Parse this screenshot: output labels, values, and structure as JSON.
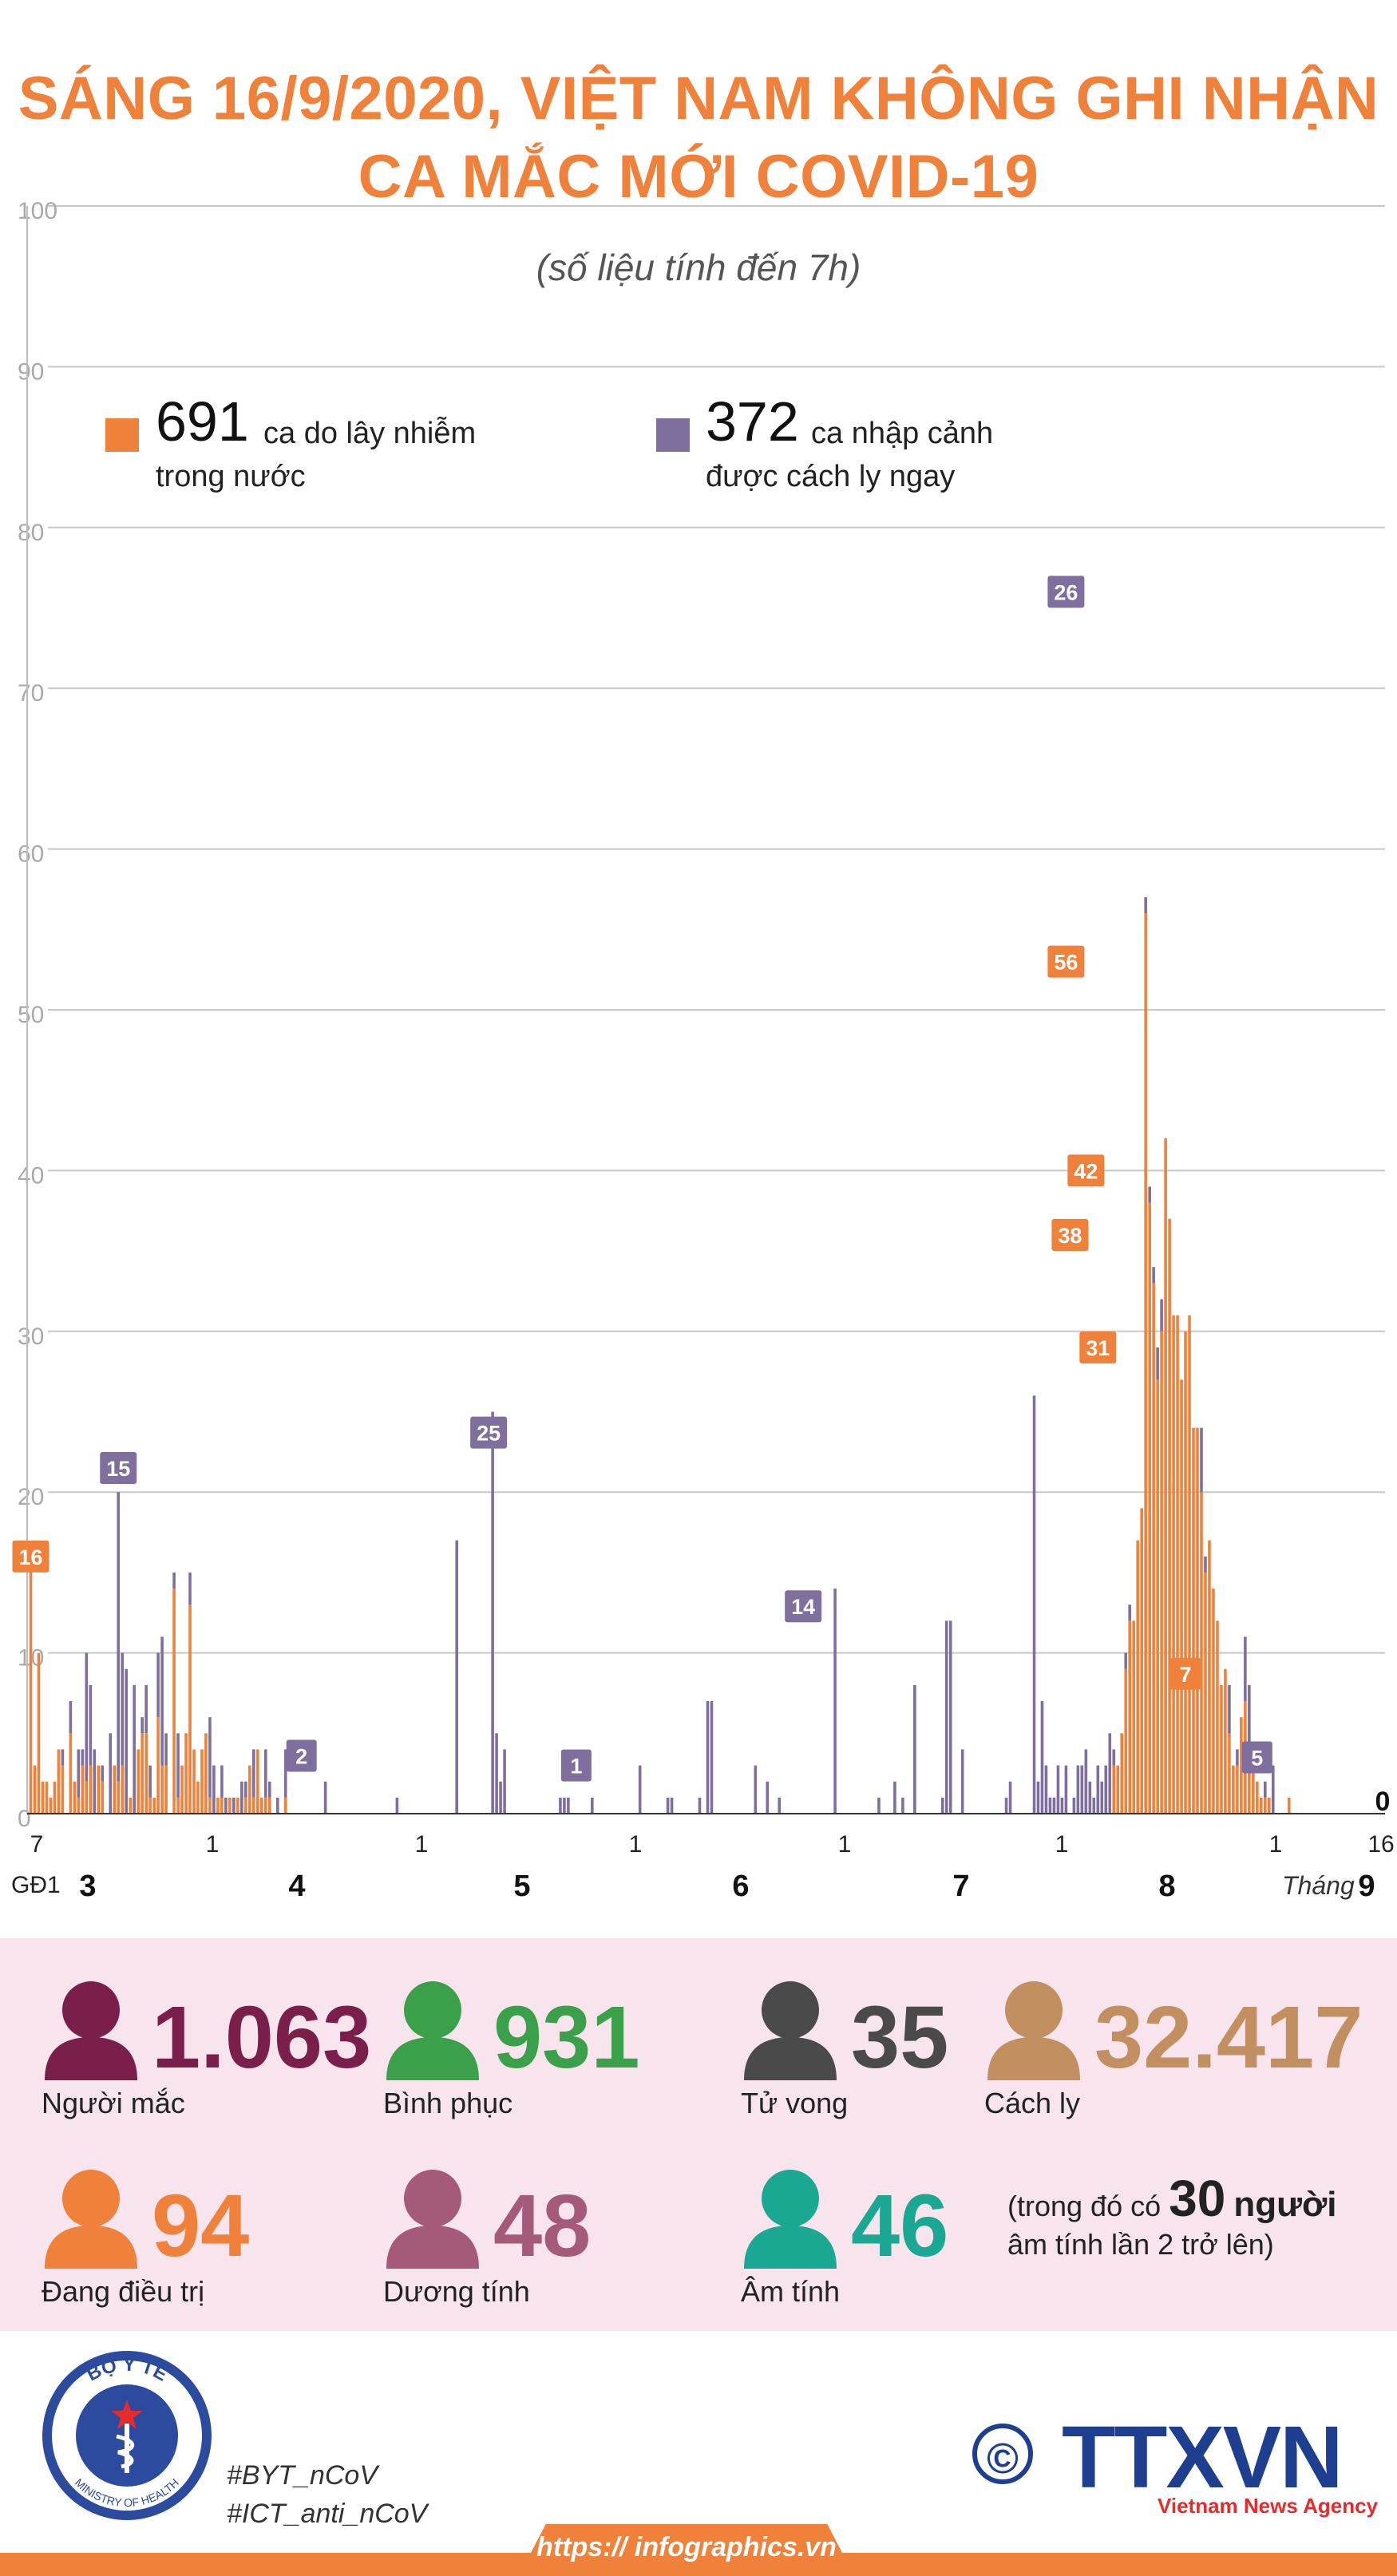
{
  "title": {
    "line1": "SÁNG 16/9/2020, VIỆT NAM KHÔNG GHI NHẬN",
    "line2": "CA MẮC MỚI COVID-19",
    "subtitle": "(số liệu tính đến 7h)"
  },
  "colors": {
    "domestic": "#f0813a",
    "imported": "#7f6f9e",
    "accent": "#f0813a"
  },
  "legend": {
    "domestic": {
      "count": "691",
      "line1": "ca do lây nhiễm",
      "line2": "trong nước"
    },
    "imported": {
      "count": "372",
      "line1": "ca nhập cảnh",
      "line2": "được cách ly ngay"
    }
  },
  "chart_data": {
    "type": "bar",
    "stacked": true,
    "ylim": [
      0,
      100
    ],
    "yticks": [
      0,
      10,
      20,
      30,
      40,
      50,
      60,
      70,
      80,
      90,
      100
    ],
    "grid": true,
    "x_unit": "day (23/1/2020 – 16/9/2020)",
    "series": [
      {
        "name": "ca do lây nhiễm trong nước",
        "color": "#f0813a",
        "values": [
          16,
          3,
          10,
          2,
          2,
          1,
          2,
          4,
          3,
          0,
          5,
          2,
          1,
          3,
          2,
          3,
          0,
          3,
          2,
          0,
          0,
          3,
          2,
          3,
          0,
          1,
          0,
          4,
          5,
          5,
          1,
          1,
          6,
          3,
          3,
          0,
          14,
          1,
          3,
          5,
          13,
          4,
          2,
          4,
          5,
          1,
          0,
          1,
          1,
          0,
          1,
          0,
          1,
          0,
          1,
          3,
          1,
          4,
          1,
          1,
          1,
          0,
          0,
          0,
          1,
          0,
          0,
          0,
          0,
          0,
          0,
          0,
          0,
          0,
          0,
          0,
          0,
          0,
          0,
          0,
          0,
          0,
          0,
          0,
          0,
          0,
          0,
          0,
          0,
          0,
          0,
          0,
          0,
          0,
          0,
          0,
          0,
          0,
          0,
          0,
          0,
          0,
          0,
          0,
          0,
          0,
          0,
          0,
          0,
          0,
          0,
          0,
          0,
          0,
          0,
          0,
          0,
          0,
          0,
          0,
          0,
          0,
          0,
          0,
          0,
          0,
          0,
          0,
          0,
          0,
          0,
          0,
          0,
          0,
          0,
          0,
          0,
          0,
          0,
          0,
          0,
          0,
          0,
          0,
          0,
          0,
          0,
          0,
          0,
          0,
          0,
          0,
          0,
          0,
          0,
          0,
          0,
          0,
          0,
          0,
          0,
          0,
          0,
          0,
          0,
          0,
          0,
          0,
          0,
          0,
          0,
          0,
          0,
          0,
          0,
          0,
          0,
          0,
          0,
          0,
          0,
          0,
          0,
          0,
          0,
          0,
          0,
          0,
          0,
          0,
          0,
          0,
          0,
          0,
          0,
          0,
          0,
          0,
          0,
          0,
          0,
          0,
          0,
          0,
          0,
          0,
          0,
          0,
          0,
          0,
          0,
          0,
          0,
          0,
          0,
          0,
          0,
          0,
          0,
          0,
          0,
          0,
          0,
          0,
          0,
          0,
          0,
          0,
          0,
          0,
          0,
          0,
          0,
          0,
          0,
          0,
          0,
          0,
          0,
          0,
          0,
          0,
          0,
          0,
          0,
          0,
          0,
          0,
          0,
          0,
          0,
          0,
          0,
          0,
          0,
          0,
          0,
          0,
          0,
          0,
          0,
          0,
          0,
          0,
          0,
          0,
          0,
          0,
          0,
          0,
          0,
          0,
          3,
          3,
          5,
          9,
          12,
          12,
          17,
          19,
          56,
          38,
          33,
          27,
          30,
          42,
          37,
          31,
          31,
          27,
          30,
          31,
          24,
          24,
          20,
          15,
          17,
          14,
          12,
          8,
          9,
          5,
          3,
          3,
          6,
          7,
          4,
          3,
          2,
          1,
          1,
          1,
          0,
          0,
          0,
          0,
          1,
          0,
          0,
          0,
          0,
          0,
          0,
          0,
          0,
          0,
          0,
          0,
          0,
          0,
          0,
          0,
          0,
          0,
          0,
          0
        ]
      },
      {
        "name": "ca nhập cảnh được cách ly ngay",
        "color": "#7f6f9e",
        "values": [
          0,
          0,
          0,
          0,
          0,
          0,
          0,
          0,
          0,
          0,
          0,
          0,
          0,
          0,
          0,
          0,
          0,
          0,
          0,
          0,
          0,
          0,
          0,
          0,
          0,
          0,
          0,
          0,
          0,
          0,
          0,
          0,
          0,
          0,
          0,
          0,
          0,
          0,
          0,
          0,
          0,
          0,
          0,
          0,
          0,
          0,
          0,
          0,
          0,
          0,
          0,
          0,
          0,
          0,
          0,
          0,
          0,
          0,
          0,
          0,
          0,
          0,
          0,
          0,
          0,
          0,
          0,
          0,
          0,
          0,
          0,
          0,
          0,
          0,
          0,
          0,
          0,
          0,
          0,
          0,
          0,
          0,
          0,
          0,
          0,
          0,
          0,
          0,
          0,
          0,
          0,
          0,
          0,
          0,
          0,
          0,
          0,
          0,
          0,
          0,
          0,
          0,
          0,
          0,
          0,
          0,
          0,
          0,
          0,
          0,
          0,
          0,
          0,
          0,
          0,
          0,
          0,
          0,
          0,
          0,
          0,
          0,
          0,
          0,
          0,
          0,
          0,
          0,
          0,
          0,
          0,
          0,
          0,
          0,
          0,
          0,
          0,
          0,
          0,
          0,
          0,
          0,
          0,
          0,
          0,
          0,
          0,
          0,
          0,
          0,
          0,
          0,
          0,
          0,
          0,
          0,
          0,
          0,
          0,
          0,
          0,
          0,
          0,
          0,
          0,
          0,
          0,
          0,
          0,
          0,
          0,
          0,
          0,
          0,
          0,
          0,
          0,
          0,
          0,
          0,
          0,
          0,
          0,
          0,
          0,
          0,
          0,
          0,
          0,
          0,
          0,
          0,
          0,
          0,
          0,
          0,
          0,
          0,
          0,
          0,
          0,
          0,
          0,
          0,
          0,
          0,
          0,
          0,
          0,
          0,
          0,
          0,
          0,
          0,
          0,
          0,
          0,
          0,
          0,
          0,
          0,
          0,
          0,
          0,
          0,
          0,
          0,
          0,
          0,
          0,
          0,
          0,
          0,
          0,
          0,
          0,
          0,
          0,
          0,
          0,
          0,
          0,
          0,
          0,
          0,
          0,
          0,
          0,
          0,
          0,
          0,
          0,
          0,
          0,
          0,
          0,
          0,
          0,
          0,
          0,
          0,
          0,
          0,
          0,
          0,
          0,
          0,
          0,
          0,
          0,
          0,
          0,
          0,
          0,
          0,
          0,
          0,
          0,
          0,
          0,
          0,
          0,
          0,
          0,
          0,
          0,
          0,
          0,
          0,
          0,
          0,
          0,
          0,
          0,
          0,
          0,
          0,
          0,
          0,
          0,
          0,
          0,
          0,
          0,
          0,
          0,
          0,
          0,
          0
        ]
      }
    ],
    "imported_values": [
      0,
      0,
      0,
      0,
      0,
      0,
      0,
      0,
      1,
      0,
      2,
      0,
      3,
      1,
      8,
      5,
      4,
      0,
      1,
      0,
      5,
      0,
      18,
      7,
      9,
      0,
      8,
      0,
      1,
      3,
      2,
      0,
      4,
      8,
      2,
      0,
      1,
      4,
      0,
      0,
      2,
      0,
      0,
      0,
      0,
      5,
      3,
      0,
      2,
      1,
      0,
      1,
      0,
      2,
      1,
      0,
      3,
      0,
      0,
      3,
      1,
      0,
      1,
      0,
      3,
      0,
      0,
      0,
      0,
      0,
      0,
      0,
      0,
      0,
      2,
      0,
      0,
      0,
      0,
      0,
      0,
      0,
      0,
      0,
      0,
      0,
      0,
      0,
      0,
      0,
      0,
      0,
      1,
      0,
      0,
      0,
      0,
      0,
      0,
      0,
      0,
      0,
      0,
      0,
      0,
      0,
      0,
      17,
      0,
      0,
      0,
      0,
      0,
      0,
      0,
      0,
      25,
      5,
      2,
      4,
      0,
      0,
      0,
      0,
      0,
      0,
      0,
      0,
      0,
      0,
      0,
      0,
      0,
      1,
      1,
      1,
      0,
      0,
      0,
      0,
      0,
      1,
      0,
      0,
      0,
      0,
      0,
      0,
      0,
      0,
      0,
      0,
      0,
      3,
      0,
      0,
      0,
      0,
      0,
      0,
      1,
      1,
      0,
      0,
      0,
      0,
      0,
      0,
      1,
      0,
      7,
      7,
      0,
      0,
      0,
      0,
      0,
      0,
      0,
      0,
      0,
      0,
      3,
      0,
      0,
      2,
      0,
      0,
      1,
      0,
      0,
      0,
      0,
      0,
      0,
      0,
      0,
      0,
      0,
      0,
      0,
      0,
      14,
      0,
      0,
      0,
      0,
      0,
      0,
      0,
      0,
      0,
      0,
      1,
      0,
      0,
      0,
      2,
      0,
      1,
      0,
      0,
      8,
      0,
      0,
      0,
      0,
      0,
      0,
      1,
      12,
      12,
      0,
      0,
      4,
      0,
      0,
      0,
      0,
      0,
      0,
      0,
      0,
      0,
      0,
      1,
      2,
      0,
      0,
      0,
      0,
      0,
      26,
      2,
      7,
      3,
      1,
      1,
      3,
      1,
      3,
      0,
      1,
      3,
      3,
      4,
      2,
      1,
      3,
      2,
      3,
      5,
      1,
      0,
      0,
      1,
      1,
      0,
      0,
      0,
      1,
      1,
      1,
      2,
      2,
      0,
      0,
      0,
      0,
      0,
      0,
      0,
      0,
      0,
      4,
      1,
      0,
      0,
      0,
      0,
      0,
      3,
      0,
      1,
      0,
      4,
      4,
      0,
      0,
      0,
      1,
      0,
      3
    ],
    "callouts": [
      {
        "label": "16",
        "series": "domestic"
      },
      {
        "label": "15",
        "series": "imported"
      },
      {
        "label": "2",
        "series": "imported"
      },
      {
        "label": "25",
        "series": "imported"
      },
      {
        "label": "1",
        "series": "imported"
      },
      {
        "label": "14",
        "series": "imported"
      },
      {
        "label": "26",
        "series": "imported"
      },
      {
        "label": "56",
        "series": "domestic"
      },
      {
        "label": "38",
        "series": "domestic"
      },
      {
        "label": "42",
        "series": "domestic"
      },
      {
        "label": "31",
        "series": "domestic"
      },
      {
        "label": "7",
        "series": "domestic"
      },
      {
        "label": "5",
        "series": "imported"
      }
    ],
    "end_label": "0",
    "x_ticks": [
      "7",
      "1",
      "1",
      "1",
      "1",
      "1",
      "1",
      "16"
    ],
    "months": [
      "3",
      "4",
      "5",
      "6",
      "7",
      "8",
      "9"
    ],
    "stage_label": "GĐ1",
    "month_word": "Tháng"
  },
  "stats": [
    {
      "value": "1.063",
      "label": "Người mắc",
      "color": "#7a1f4a"
    },
    {
      "value": "931",
      "label": "Bình phục",
      "color": "#3aa14a"
    },
    {
      "value": "35",
      "label": "Tử vong",
      "color": "#4a4a4a"
    },
    {
      "value": "32.417",
      "label": "Cách ly",
      "color": "#c29060"
    },
    {
      "value": "94",
      "label": "Đang điều trị",
      "color": "#f0813a"
    },
    {
      "value": "48",
      "label": "Dương tính",
      "color": "#a45a78"
    },
    {
      "value": "46",
      "label": "Âm tính",
      "color": "#1aa893"
    }
  ],
  "note": {
    "prefix": "(trong đó có",
    "number": "30",
    "suffix": "người",
    "line2": "âm tính lần 2 trở lên)"
  },
  "footer": {
    "logo_text_top": "BỘ Y TẾ",
    "logo_text_bottom": "MINISTRY OF HEALTH",
    "hashtags": [
      "#BYT_nCoV",
      "#ICT_anti_nCoV"
    ],
    "copyright": "©",
    "agency": "TTXVN",
    "agency_sub": "Vietnam News Agency",
    "url": "https:// infographics.vn"
  }
}
